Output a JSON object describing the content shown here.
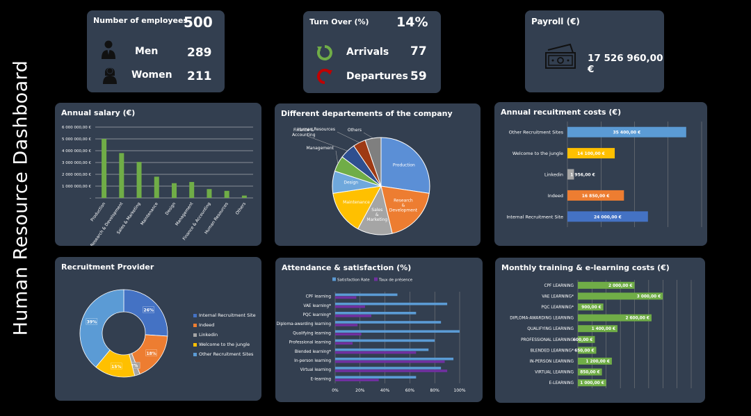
{
  "page_title": "Human Resource Dashboard",
  "employees": {
    "title": "Number of employees",
    "total": "500",
    "men_label": "Men",
    "men_value": "289",
    "women_label": "Women",
    "women_value": "211"
  },
  "turnover": {
    "title": "Turn Over (%)",
    "value": "14%",
    "arrivals_label": "Arrivals",
    "arrivals_value": "77",
    "departures_label": "Departures",
    "departures_value": "59",
    "arrival_color": "#70ad47",
    "departure_color": "#c00000"
  },
  "payroll": {
    "title": "Payroll (€)",
    "value": "17 526 960,00 €"
  },
  "chart_data": [
    {
      "id": "salary",
      "type": "bar",
      "title": "Annual salary (€)",
      "categories": [
        "Production",
        "Research & Development",
        "Sales & Marketing",
        "Maintenance",
        "Design",
        "Management",
        "Finance & Accounting",
        "Human Resources",
        "Others"
      ],
      "values": [
        5000000,
        3800000,
        3050000,
        1800000,
        1250000,
        1350000,
        750000,
        600000,
        200000
      ],
      "yticks": [
        "6 000 000,00 €",
        "5 000 000,00 €",
        "4 000 000,00 €",
        "3 000 000,00 €",
        "2 000 000,00 €",
        "1 000 000,00 €",
        "-"
      ],
      "ylim": [
        0,
        6000000
      ],
      "grid": true,
      "color": "#70ad47"
    },
    {
      "id": "departments",
      "type": "pie",
      "title": "Different departements of the company",
      "labels": [
        "Production",
        "Research & Development",
        "Sales & Marketing",
        "Maintenance",
        "Design",
        "Management",
        "Finance & Accounting",
        "Human Resources",
        "Others"
      ],
      "values": [
        26,
        18,
        11,
        14,
        7,
        5,
        5,
        4,
        5
      ],
      "colors": [
        "#5b8fd6",
        "#ed7d31",
        "#a5a5a5",
        "#ffc000",
        "#6fa8dc",
        "#70ad47",
        "#2f4f8f",
        "#9e3a14",
        "#7f7f7f"
      ]
    },
    {
      "id": "recruit_costs",
      "type": "bar",
      "title": "Annual recuitment costs (€)",
      "categories": [
        "Other Recruitment Sites",
        "Welcome to the jungle",
        "Linkedin",
        "Indeed",
        "Internal Recruitment Site"
      ],
      "values": [
        35400,
        14100,
        1956,
        16850,
        24000
      ],
      "labels": [
        "35 400,00 €",
        "14 100,00 €",
        "1 956,00 €",
        "16 850,00 €",
        "24 000,00 €"
      ],
      "colors": [
        "#5b9bd5",
        "#ffc000",
        "#a5a5a5",
        "#ed7d31",
        "#4472c4"
      ],
      "xlim": [
        0,
        40000
      ],
      "grid": true
    },
    {
      "id": "provider",
      "type": "pie",
      "title": "Recruitment Provider",
      "labels": [
        "Internal Recruitment Site",
        "Indeed",
        "Linkedin",
        "Welcome to the jungle",
        "Other Recruitment Sites"
      ],
      "values": [
        26,
        18,
        2,
        15,
        39
      ],
      "pct_labels": [
        "26%",
        "18%",
        "2%",
        "15%",
        "39%"
      ],
      "colors": [
        "#4472c4",
        "#ed7d31",
        "#a5a5a5",
        "#ffc000",
        "#5b9bd5"
      ],
      "legend": "right"
    },
    {
      "id": "attendance",
      "type": "bar",
      "title": "Attendance & satisfaction (%)",
      "categories": [
        "CPF learning",
        "VAE learning*",
        "PQC learning*",
        "Diploma-awarding learning",
        "Qualifying learning",
        "Professional learning",
        "Blended learning*",
        "In-person learning",
        "Virtual learning",
        "E-learning"
      ],
      "series": [
        {
          "name": "Satisfaction Rate",
          "color": "#5b9bd5",
          "values": [
            50,
            90,
            65,
            85,
            100,
            80,
            75,
            95,
            85,
            65
          ]
        },
        {
          "name": "Taux de présence",
          "color": "#7030a0",
          "values": [
            17,
            24,
            29,
            18,
            21,
            14,
            65,
            88,
            90,
            35
          ]
        }
      ],
      "xticks": [
        "0%",
        "20%",
        "40%",
        "60%",
        "80%",
        "100%"
      ],
      "xlim": [
        0,
        100
      ],
      "grid": true,
      "legend": "top"
    },
    {
      "id": "training",
      "type": "bar",
      "title": "Monthly training & e-learning costs (€)",
      "categories": [
        "CPF LEARNING",
        "VAE LEARNING*",
        "PQC LEARNING*",
        "DIPLOMA-AWARDING LEARNING",
        "QUALIFYING LEARNING",
        "PROFESSIONAL LEARNING",
        "BLENDED LEARNING*",
        "IN-PERSON LEARNING",
        "VIRTUAL LEARNING",
        "E-LEARNING"
      ],
      "values": [
        2000,
        3000,
        900,
        2600,
        1400,
        600,
        650,
        1200,
        850,
        1000
      ],
      "labels": [
        "2 000,00 €",
        "3 000,00 €",
        "900,00 €",
        "2 600,00 €",
        "1 400,00 €",
        "600,00 €",
        "650,00 €",
        "1 200,00 €",
        "850,00 €",
        "1 000,00 €"
      ],
      "xlim": [
        0,
        4000
      ],
      "grid": true,
      "color": "#70ad47"
    }
  ]
}
